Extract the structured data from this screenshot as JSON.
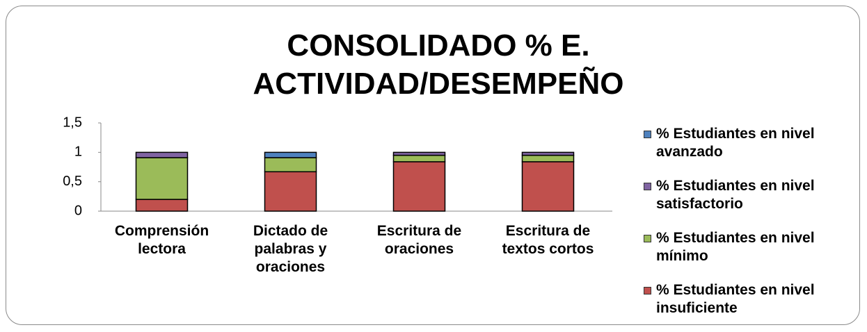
{
  "chart_data": {
    "type": "stacked_bar",
    "title": "CONSOLIDADO % E. ACTIVIDAD/DESEMPEÑO",
    "categories": [
      "Comprensión lectora",
      "Dictado de palabras y oraciones",
      "Escritura de oraciones",
      "Escritura de textos cortos"
    ],
    "series": [
      {
        "name": "% Estudiantes en nivel insuficiente",
        "color": "#c0504d",
        "values": [
          0.2,
          0.67,
          0.84,
          0.84
        ]
      },
      {
        "name": "% Estudiantes en nivel mínimo",
        "color": "#9bbb59",
        "values": [
          0.71,
          0.24,
          0.11,
          0.11
        ]
      },
      {
        "name": "% Estudiantes en nivel satisfactorio",
        "color": "#8064a2",
        "values": [
          0.09,
          0,
          0.05,
          0.05
        ]
      },
      {
        "name": "% Estudiantes en nivel avanzado",
        "color": "#4f81bd",
        "values": [
          0,
          0.09,
          0,
          0
        ]
      }
    ],
    "ylim": [
      0,
      1.5
    ],
    "yticks": [
      0,
      {
        "value": 0.5,
        "label": "0,5"
      },
      1,
      {
        "value": 1.5,
        "label": "1,5"
      }
    ],
    "legend": "right"
  }
}
